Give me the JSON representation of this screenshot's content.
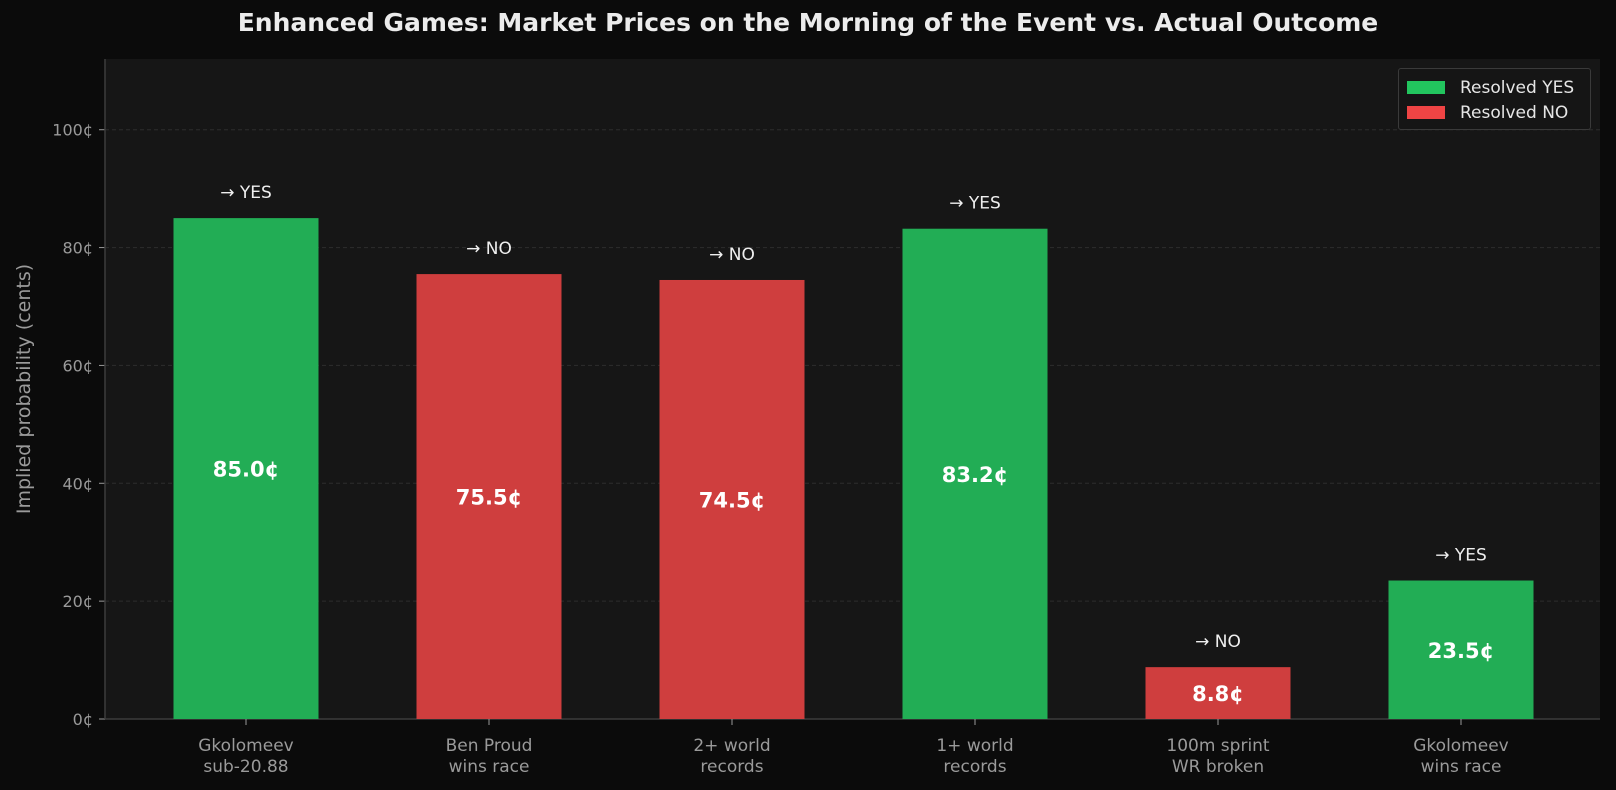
{
  "chart_data": {
    "type": "bar",
    "title": "Enhanced Games: Market Prices on the Morning of the Event vs. Actual Outcome",
    "xlabel": "",
    "ylabel": "Implied probability (cents)",
    "ylim": [
      0,
      112
    ],
    "yticks": [
      0,
      20,
      40,
      60,
      80,
      100
    ],
    "ytick_labels": [
      "0¢",
      "20¢",
      "40¢",
      "60¢",
      "80¢",
      "100¢"
    ],
    "grid": true,
    "legend_position": "top-right",
    "categories": [
      [
        "Gkolomeev",
        "sub-20.88"
      ],
      [
        "Ben Proud",
        "wins race"
      ],
      [
        "2+ world",
        "records"
      ],
      [
        "1+ world",
        "records"
      ],
      [
        "100m sprint",
        "WR broken"
      ],
      [
        "Gkolomeev",
        "wins race"
      ]
    ],
    "values": [
      85.0,
      75.5,
      74.5,
      83.2,
      8.8,
      23.5
    ],
    "value_labels": [
      "85.0¢",
      "75.5¢",
      "74.5¢",
      "83.2¢",
      "8.8¢",
      "23.5¢"
    ],
    "outcomes": [
      "YES",
      "NO",
      "NO",
      "YES",
      "NO",
      "YES"
    ],
    "outcome_labels": [
      "→ YES",
      "→ NO",
      "→ NO",
      "→ YES",
      "→ NO",
      "→ YES"
    ],
    "legend": [
      {
        "label": "Resolved YES",
        "outcome": "YES"
      },
      {
        "label": "Resolved NO",
        "outcome": "NO"
      }
    ],
    "colors": {
      "YES": "#22ad55",
      "NO": "#cf3e3e",
      "legend_YES": "#22c55e",
      "legend_NO": "#ef4444",
      "plot_bg": "#161616",
      "page_bg": "#0b0b0b",
      "grid": "#2d2d2d",
      "axis": "#3c3c3c",
      "tick_text": "#9a9a9a",
      "annotation_text": "#efefef"
    }
  }
}
